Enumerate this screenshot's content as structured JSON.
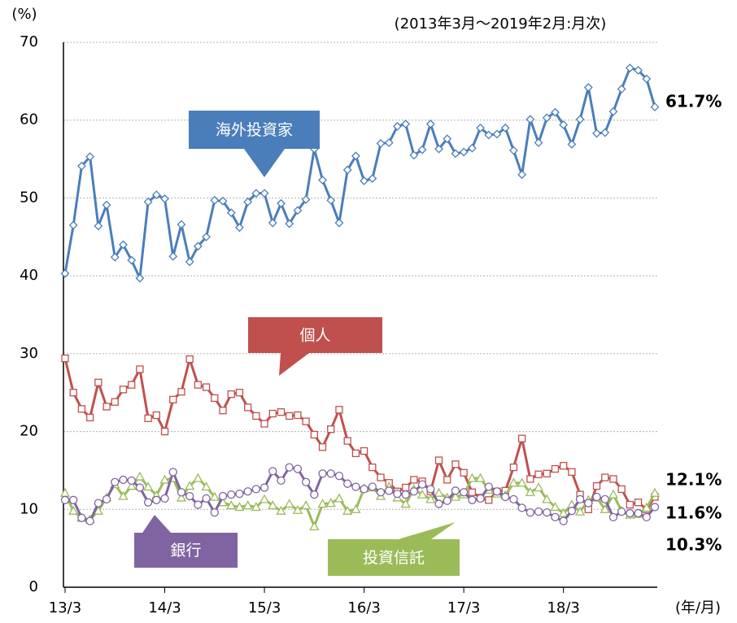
{
  "chart_data": {
    "type": "line",
    "title": "(2013年3月～2019年2月:月次)",
    "y_axis_label": "(%)",
    "x_axis_label": "(年/月)",
    "categories": [
      "13/3",
      null,
      null,
      null,
      null,
      null,
      null,
      null,
      null,
      null,
      null,
      null,
      "14/3",
      null,
      null,
      null,
      null,
      null,
      null,
      null,
      null,
      null,
      null,
      null,
      "15/3",
      null,
      null,
      null,
      null,
      null,
      null,
      null,
      null,
      null,
      null,
      null,
      "16/3",
      null,
      null,
      null,
      null,
      null,
      null,
      null,
      null,
      null,
      null,
      null,
      "17/3",
      null,
      null,
      null,
      null,
      null,
      null,
      null,
      null,
      null,
      null,
      null,
      "18/3",
      null,
      null,
      null,
      null,
      null,
      null,
      null,
      null,
      null,
      null,
      null
    ],
    "ylim": [
      0,
      70
    ],
    "yticks": [
      0,
      10,
      20,
      30,
      40,
      50,
      60,
      70
    ],
    "grid": true,
    "series": [
      {
        "name": "海外投資家",
        "color": "#4a7ebb",
        "marker": "diamond",
        "values": [
          40.3,
          46.5,
          54.1,
          55.3,
          46.4,
          49.1,
          42.4,
          44.0,
          42.0,
          39.7,
          49.5,
          50.4,
          49.9,
          42.5,
          46.6,
          41.8,
          43.8,
          45.0,
          49.7,
          49.6,
          48.1,
          46.2,
          49.5,
          50.6,
          50.6,
          46.8,
          49.3,
          46.7,
          48.4,
          49.8,
          56.3,
          52.3,
          49.7,
          46.8,
          53.6,
          55.4,
          52.2,
          52.5,
          57.0,
          57.1,
          59.2,
          59.5,
          55.5,
          56.2,
          59.5,
          56.3,
          57.6,
          55.7,
          55.9,
          56.4,
          59.0,
          58.1,
          58.2,
          59.0,
          56.1,
          53.0,
          60.1,
          57.1,
          60.3,
          61.0,
          59.4,
          56.9,
          60.1,
          64.2,
          58.3,
          58.4,
          61.1,
          64.0,
          66.7,
          66.4,
          65.3,
          61.7
        ],
        "value_labels": [
          null,
          null,
          null,
          null,
          null,
          null,
          null,
          null,
          null,
          null,
          null,
          null,
          null,
          null,
          null,
          null,
          null,
          null,
          null,
          null,
          null,
          null,
          null,
          null,
          null,
          null,
          null,
          null,
          null,
          null,
          null,
          null,
          null,
          null,
          null,
          null,
          null,
          null,
          null,
          null,
          null,
          null,
          null,
          null,
          null,
          null,
          null,
          null,
          null,
          null,
          null,
          null,
          null,
          null,
          null,
          null,
          null,
          null,
          null,
          null,
          null,
          null,
          null,
          null,
          null,
          null,
          null,
          null,
          null,
          null,
          null,
          "61.7%"
        ]
      },
      {
        "name": "個人",
        "color": "#c0504d",
        "marker": "square",
        "values": [
          29.4,
          25.0,
          22.9,
          21.8,
          26.3,
          23.2,
          23.8,
          25.4,
          26.0,
          28.0,
          21.7,
          22.1,
          20.0,
          24.1,
          25.1,
          29.3,
          26.0,
          25.7,
          24.3,
          22.7,
          24.8,
          25.0,
          23.1,
          22.0,
          21.0,
          22.3,
          22.5,
          22.0,
          22.1,
          21.3,
          19.6,
          18.0,
          20.3,
          22.8,
          18.8,
          17.2,
          17.5,
          15.4,
          14.1,
          13.4,
          12.3,
          12.8,
          13.8,
          13.6,
          12.3,
          16.3,
          13.8,
          15.8,
          14.7,
          12.2,
          11.5,
          11.2,
          12.3,
          12.4,
          15.4,
          19.1,
          13.9,
          14.5,
          14.6,
          15.2,
          15.6,
          14.8,
          11.9,
          10.0,
          13.0,
          14.1,
          13.9,
          12.6,
          10.6,
          10.9,
          10.0,
          11.6
        ],
        "value_labels": [
          null,
          null,
          null,
          null,
          null,
          null,
          null,
          null,
          null,
          null,
          null,
          null,
          null,
          null,
          null,
          null,
          null,
          null,
          null,
          null,
          null,
          null,
          null,
          null,
          null,
          null,
          null,
          null,
          null,
          null,
          null,
          null,
          null,
          null,
          null,
          null,
          null,
          null,
          null,
          null,
          null,
          null,
          null,
          null,
          null,
          null,
          null,
          null,
          null,
          null,
          null,
          null,
          null,
          null,
          null,
          null,
          null,
          null,
          null,
          null,
          null,
          null,
          null,
          null,
          null,
          null,
          null,
          null,
          null,
          null,
          null,
          "11.6%"
        ]
      },
      {
        "name": "投資信託",
        "color": "#9bbb59",
        "marker": "triangle",
        "values": [
          12.1,
          9.8,
          8.9,
          8.7,
          9.8,
          11.5,
          13.2,
          11.7,
          13.0,
          14.2,
          12.9,
          11.8,
          13.8,
          14.0,
          11.5,
          13.0,
          14.0,
          12.9,
          11.6,
          10.9,
          10.5,
          10.3,
          10.5,
          10.3,
          11.3,
          10.5,
          9.8,
          10.7,
          9.9,
          10.5,
          7.8,
          10.7,
          10.8,
          11.4,
          9.8,
          10.0,
          12.7,
          12.8,
          11.7,
          12.9,
          11.5,
          10.7,
          12.6,
          11.9,
          11.3,
          12.1,
          11.5,
          11.6,
          11.9,
          14.0,
          14.0,
          12.5,
          12.0,
          11.8,
          13.4,
          13.4,
          12.2,
          12.8,
          11.3,
          10.3,
          9.5,
          10.6,
          9.7,
          11.2,
          11.5,
          10.0,
          11.9,
          9.8,
          9.3,
          9.4,
          10.2,
          12.1
        ],
        "value_labels": [
          null,
          null,
          null,
          null,
          null,
          null,
          null,
          null,
          null,
          null,
          null,
          null,
          null,
          null,
          null,
          null,
          null,
          null,
          null,
          null,
          null,
          null,
          null,
          null,
          null,
          null,
          null,
          null,
          null,
          null,
          null,
          null,
          null,
          null,
          null,
          null,
          null,
          null,
          null,
          null,
          null,
          null,
          null,
          null,
          null,
          null,
          null,
          null,
          null,
          null,
          null,
          null,
          null,
          null,
          null,
          null,
          null,
          null,
          null,
          null,
          null,
          null,
          null,
          null,
          null,
          null,
          null,
          null,
          null,
          null,
          null,
          "12.1%"
        ]
      },
      {
        "name": "銀行",
        "color": "#8064a2",
        "marker": "circle",
        "values": [
          11.2,
          11.2,
          8.9,
          8.5,
          10.8,
          11.3,
          13.5,
          13.8,
          13.7,
          12.8,
          10.9,
          11.2,
          11.4,
          14.8,
          12.2,
          11.7,
          10.6,
          11.4,
          9.6,
          11.7,
          11.9,
          12.0,
          12.3,
          12.6,
          12.8,
          14.9,
          13.7,
          15.4,
          15.2,
          13.5,
          11.9,
          14.6,
          14.6,
          14.3,
          13.3,
          12.9,
          12.6,
          12.9,
          12.2,
          12.4,
          12.0,
          11.9,
          12.3,
          13.2,
          12.6,
          10.7,
          11.1,
          12.4,
          12.2,
          11.2,
          11.4,
          12.9,
          12.3,
          11.6,
          11.3,
          10.2,
          9.6,
          9.7,
          9.6,
          9.0,
          8.5,
          9.8,
          11.3,
          10.8,
          11.6,
          11.3,
          9.0,
          9.7,
          9.5,
          9.5,
          9.0,
          10.3
        ],
        "value_labels": [
          null,
          null,
          null,
          null,
          null,
          null,
          null,
          null,
          null,
          null,
          null,
          null,
          null,
          null,
          null,
          null,
          null,
          null,
          null,
          null,
          null,
          null,
          null,
          null,
          null,
          null,
          null,
          null,
          null,
          null,
          null,
          null,
          null,
          null,
          null,
          null,
          null,
          null,
          null,
          null,
          null,
          null,
          null,
          null,
          null,
          null,
          null,
          null,
          null,
          null,
          null,
          null,
          null,
          null,
          null,
          null,
          null,
          null,
          null,
          null,
          null,
          null,
          null,
          null,
          null,
          null,
          null,
          null,
          null,
          null,
          null,
          "10.3%"
        ]
      }
    ]
  }
}
